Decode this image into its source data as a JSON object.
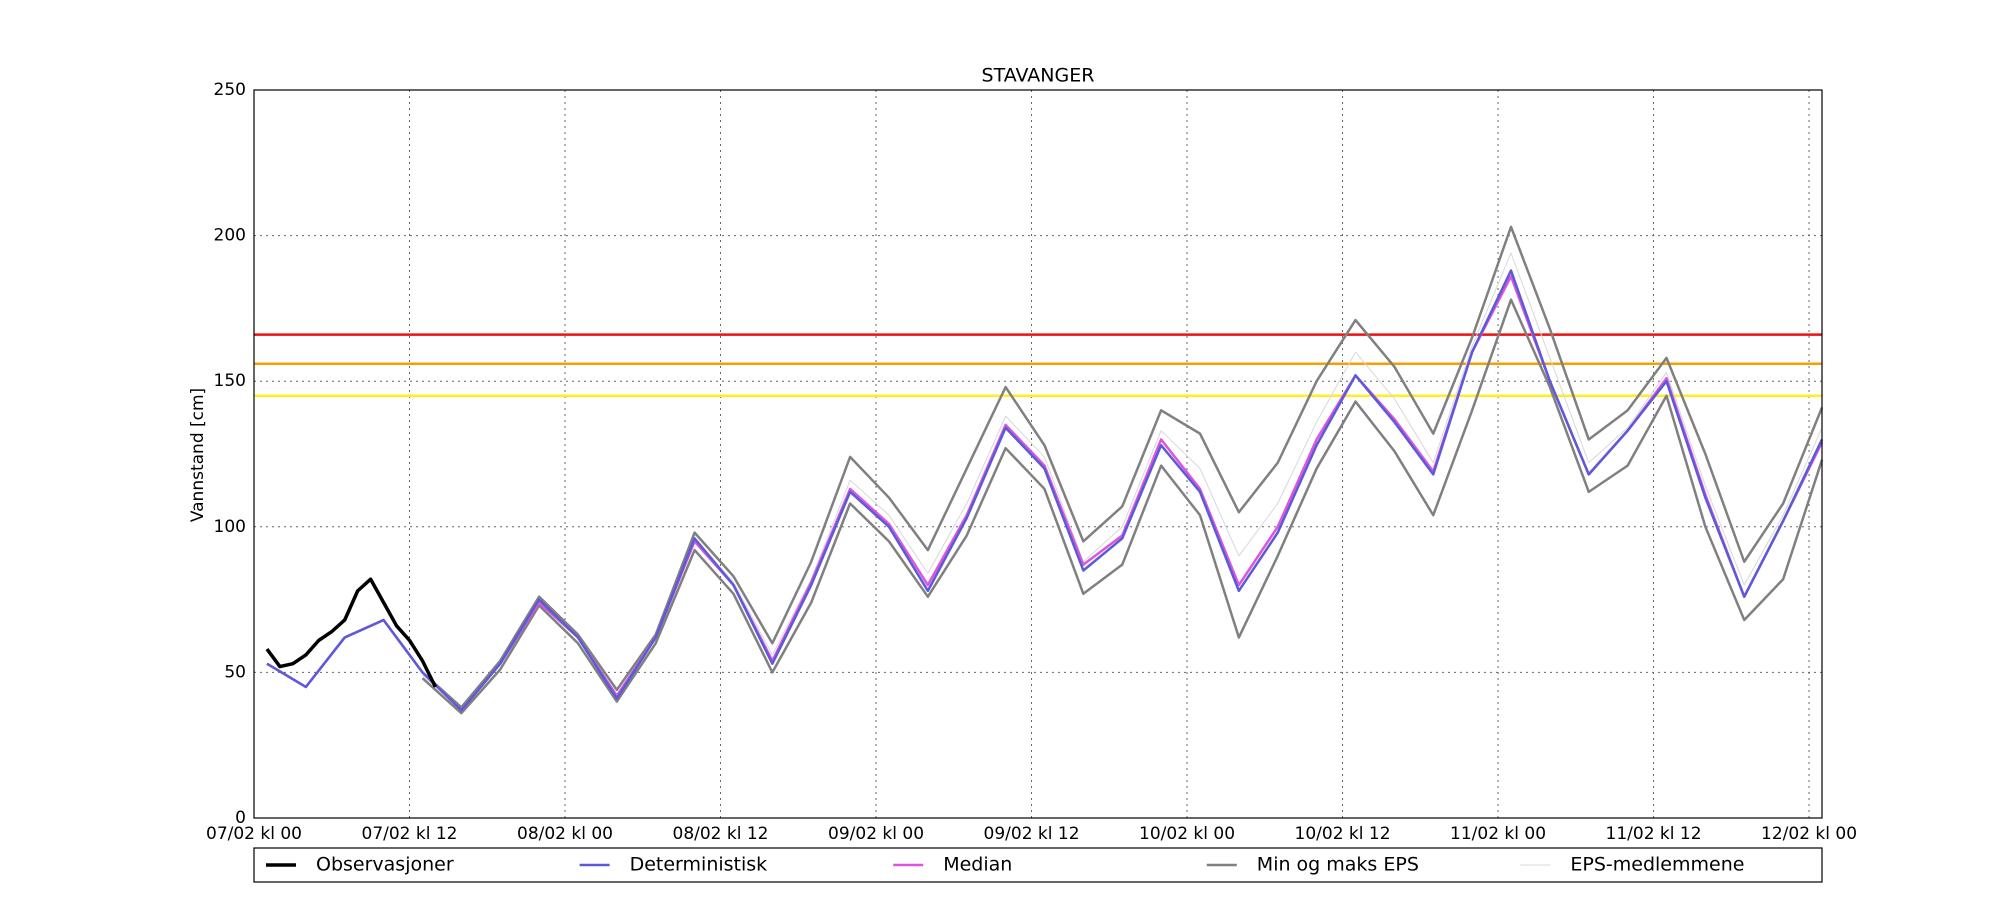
{
  "chart_data": {
    "type": "line",
    "title": "STAVANGER",
    "y_label": "Vannstand [cm]",
    "x": [
      1,
      4,
      7,
      10,
      13,
      16,
      19,
      22,
      25,
      28,
      31,
      34,
      37,
      40,
      43,
      46,
      49,
      52,
      55,
      58,
      61,
      64,
      67,
      70,
      73,
      76,
      79,
      82,
      85,
      88,
      91,
      94,
      97,
      100,
      103,
      106,
      109,
      112,
      115,
      118,
      121
    ],
    "xlim": [
      0,
      121
    ],
    "xticks": [
      {
        "value": 0,
        "label": "07/02 kl 00"
      },
      {
        "value": 12,
        "label": "07/02 kl 12"
      },
      {
        "value": 24,
        "label": "08/02 kl 00"
      },
      {
        "value": 36,
        "label": "08/02 kl 12"
      },
      {
        "value": 48,
        "label": "09/02 kl 00"
      },
      {
        "value": 60,
        "label": "09/02 kl 12"
      },
      {
        "value": 72,
        "label": "10/02 kl 00"
      },
      {
        "value": 84,
        "label": "10/02 kl 12"
      },
      {
        "value": 96,
        "label": "11/02 kl 00"
      },
      {
        "value": 108,
        "label": "11/02 kl 12"
      },
      {
        "value": 120,
        "label": "12/02 kl 00"
      }
    ],
    "ylim": [
      0,
      250
    ],
    "yticks": [
      0,
      50,
      100,
      150,
      200,
      250
    ],
    "grid": true,
    "hlines": [
      {
        "value": 166,
        "color": "#ee1111"
      },
      {
        "value": 156,
        "color": "#f5a000"
      },
      {
        "value": 145,
        "color": "#ffee22"
      }
    ],
    "series": [
      {
        "name": "EPS-medlemmene",
        "color": "#d8d8d8",
        "width": 1,
        "values": [
          null,
          null,
          null,
          null,
          49,
          37,
          53,
          75,
          62,
          42,
          62,
          96,
          81,
          56,
          82,
          116,
          104,
          84,
          108,
          138,
          124,
          88,
          100,
          133,
          120,
          90,
          108,
          136,
          160,
          144,
          122,
          162,
          194,
          158,
          122,
          134,
          153,
          114,
          80,
          104,
          134
        ]
      },
      {
        "name": "Min og maks EPS",
        "color": "#808080",
        "width": 2.5,
        "values": [
          null,
          null,
          null,
          null,
          50,
          38,
          54,
          76,
          63,
          44,
          63,
          98,
          83,
          60,
          88,
          124,
          110,
          92,
          120,
          148,
          128,
          95,
          107,
          140,
          132,
          105,
          122,
          150,
          171,
          155,
          132,
          165,
          203,
          168,
          130,
          140,
          158,
          125,
          88,
          108,
          141
        ]
      },
      {
        "color": "#808080",
        "width": 2.5,
        "values": [
          null,
          null,
          null,
          null,
          48,
          36,
          51,
          73,
          60,
          40,
          60,
          92,
          77,
          50,
          74,
          108,
          95,
          76,
          97,
          127,
          113,
          77,
          87,
          121,
          104,
          62,
          90,
          120,
          143,
          126,
          104,
          140,
          178,
          148,
          112,
          121,
          145,
          100,
          68,
          82,
          123
        ]
      },
      {
        "name": "Median",
        "color": "#dd55dd",
        "width": 2.5,
        "values": [
          53,
          45,
          62,
          68,
          50,
          37,
          53,
          74,
          62,
          42,
          62,
          95,
          80,
          54,
          81,
          113,
          101,
          80,
          104,
          135,
          121,
          87,
          97,
          130,
          113,
          80,
          100,
          130,
          152,
          137,
          119,
          160,
          186,
          150,
          118,
          133,
          151,
          111,
          76,
          102,
          129
        ]
      },
      {
        "name": "Deterministisk",
        "color": "#5b5bd9",
        "width": 2.5,
        "values": [
          53,
          45,
          62,
          68,
          50,
          37,
          53,
          75,
          62,
          41,
          62,
          96,
          80,
          53,
          80,
          112,
          100,
          78,
          103,
          134,
          120,
          85,
          96,
          128,
          112,
          78,
          98,
          128,
          152,
          136,
          118,
          160,
          188,
          150,
          118,
          133,
          150,
          110,
          76,
          102,
          130
        ]
      },
      {
        "name": "Observasjoner",
        "color": "#000000",
        "width": 3.5,
        "x": [
          1,
          2,
          3,
          4,
          5,
          6,
          7,
          8,
          9,
          10,
          11,
          12,
          13,
          14
        ],
        "values": [
          58,
          52,
          53,
          56,
          61,
          64,
          68,
          78,
          82,
          74,
          66,
          61,
          54,
          45
        ]
      }
    ],
    "legend_order": [
      5,
      4,
      3,
      1,
      0
    ]
  }
}
